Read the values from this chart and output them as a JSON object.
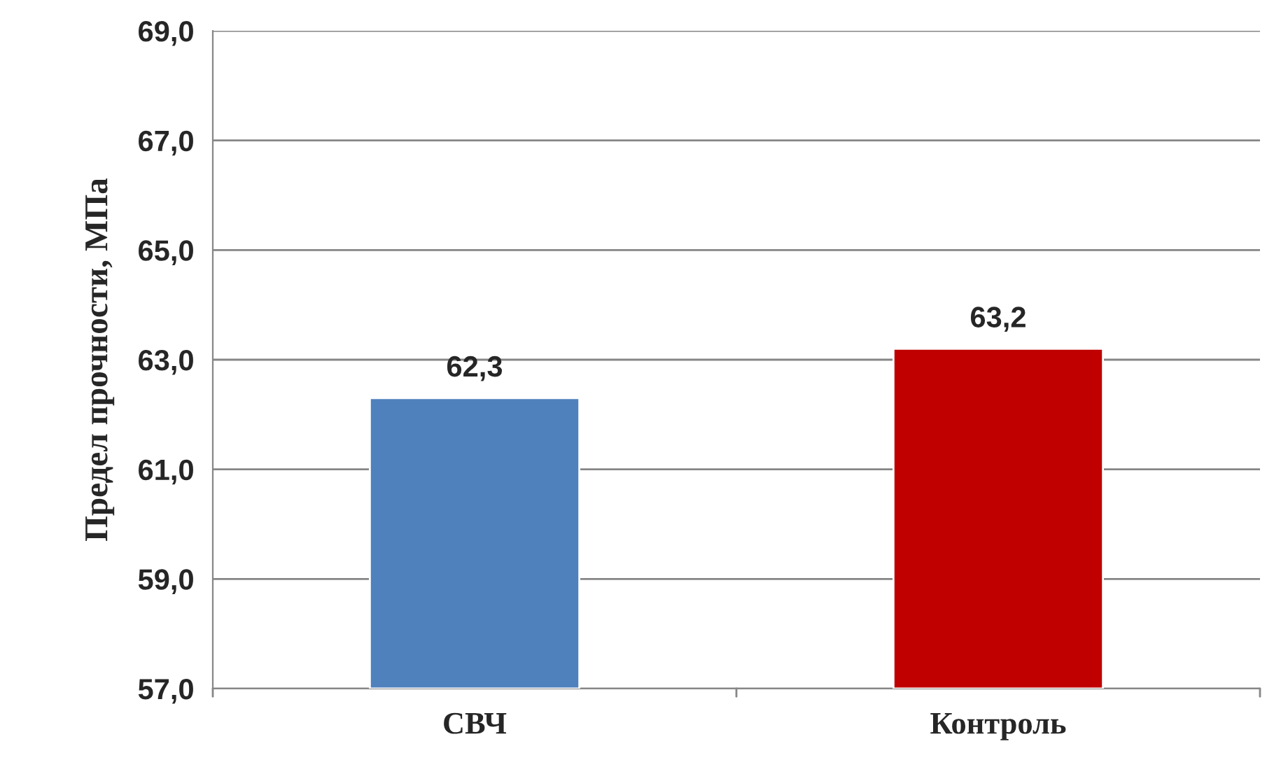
{
  "chart_data": {
    "type": "bar",
    "ylabel": "Предел прочности, МПа",
    "categories": [
      "СВЧ",
      "Контроль"
    ],
    "values": [
      62.3,
      63.2
    ],
    "colors": [
      "#4f81bd",
      "#c00000"
    ],
    "value_labels": [
      "62,3",
      "63,2"
    ],
    "ylim": [
      57,
      69
    ],
    "yticks": [
      {
        "value": 57,
        "label": "57,0"
      },
      {
        "value": 59,
        "label": "59,0"
      },
      {
        "value": 61,
        "label": "61,0"
      },
      {
        "value": 63,
        "label": "63,0"
      },
      {
        "value": 65,
        "label": "65,0"
      },
      {
        "value": 67,
        "label": "67,0"
      },
      {
        "value": 69,
        "label": "69,0"
      }
    ],
    "grid": "y",
    "legend": false
  }
}
